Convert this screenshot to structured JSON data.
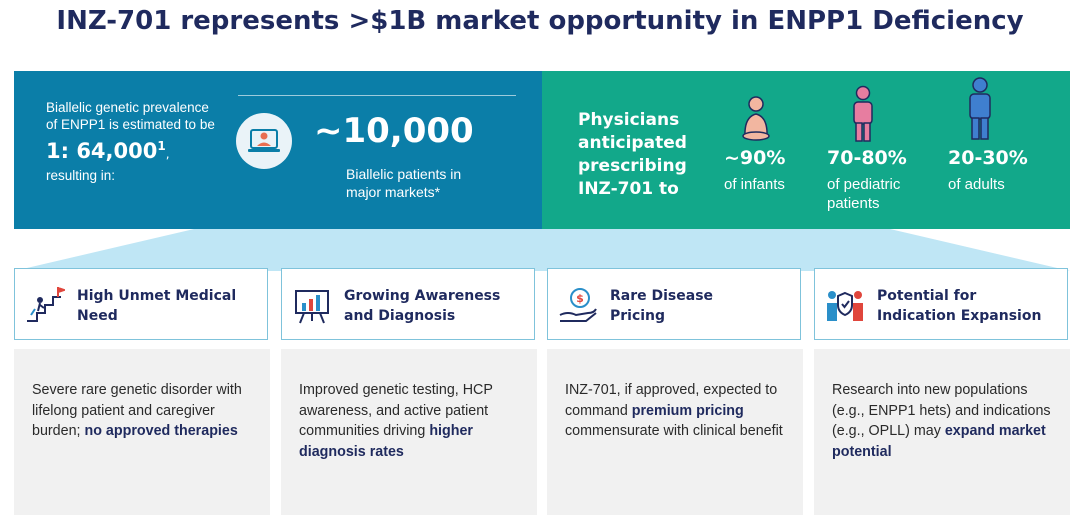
{
  "title": "INZ-701 represents >$1B market opportunity in ENPP1 Deficiency",
  "prevalence": {
    "lead": "Biallelic genetic prevalence of ENPP1 is estimated to be",
    "ratio": "1: 64,000",
    "ratio_sup": "1",
    "ratio_tail": ",",
    "tail": "resulting in:",
    "number": "~10,000",
    "number_label": "Biallelic patients in major markets*"
  },
  "physicians": {
    "lead": "Physicians anticipated prescribing INZ-701 to",
    "stats": [
      {
        "pct": "~90%",
        "label": "of infants"
      },
      {
        "pct": "70-80%",
        "label": "of pediatric patients"
      },
      {
        "pct": "20-30%",
        "label": "of adults"
      }
    ]
  },
  "pillars": [
    {
      "title": "High Unmet Medical Need",
      "icon": "stairs-goal-icon",
      "text_parts": [
        {
          "t": "Severe rare genetic disorder with lifelong patient and caregiver burden; ",
          "b": false
        },
        {
          "t": "no approved therapies",
          "b": true
        }
      ]
    },
    {
      "title": "Growing Awareness and Diagnosis",
      "icon": "presentation-chart-icon",
      "text_parts": [
        {
          "t": "Improved genetic testing, HCP awareness, and active patient communities driving ",
          "b": false
        },
        {
          "t": "higher diagnosis rates",
          "b": true
        }
      ]
    },
    {
      "title": "Rare Disease Pricing",
      "icon": "hand-coin-icon",
      "text_parts": [
        {
          "t": "INZ-701, if approved, expected to command ",
          "b": false
        },
        {
          "t": "premium pricing",
          "b": true
        },
        {
          "t": " commensurate with clinical benefit",
          "b": false
        }
      ]
    },
    {
      "title": "Potential for Indication Expansion",
      "icon": "people-shield-icon",
      "text_parts": [
        {
          "t": "Research into new populations (e.g., ENPP1 hets) and indications (e.g., OPLL) may ",
          "b": false
        },
        {
          "t": "expand market potential",
          "b": true
        }
      ]
    }
  ],
  "colors": {
    "navy": "#1f2a5e",
    "blue": "#0b7ea8",
    "green": "#12a88a",
    "light_blue": "#bfe6f5",
    "grey": "#f1f1f1"
  }
}
